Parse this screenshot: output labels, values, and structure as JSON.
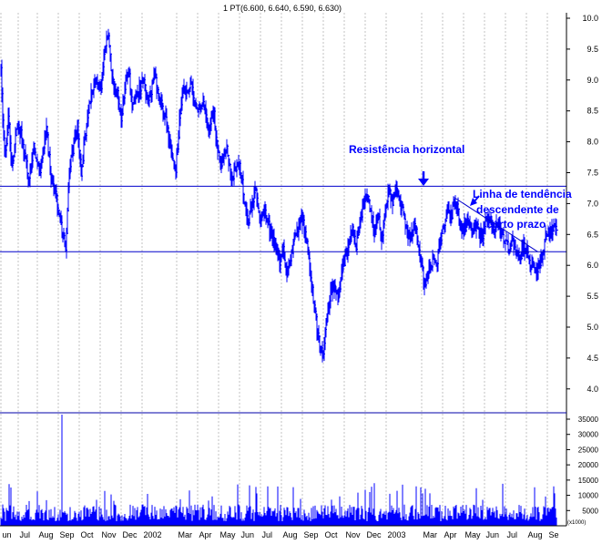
{
  "chart_data": [
    {
      "type": "bar",
      "title": "1 PT(6.600, 6.640, 6.590, 6.630)",
      "xlabel": "",
      "ylabel": "",
      "ylim": [
        4.0,
        10.0
      ],
      "y_ticks": [
        "10.0",
        "9.5",
        "9.0",
        "8.5",
        "8.0",
        "7.5",
        "7.0",
        "6.5",
        "6.0",
        "5.5",
        "5.0",
        "4.5",
        "4.0"
      ],
      "y_tick_values": [
        10.0,
        9.5,
        9.0,
        8.5,
        8.0,
        7.5,
        7.0,
        6.5,
        6.0,
        5.5,
        5.0,
        4.5,
        4.0
      ],
      "axis_side": "right",
      "grid": true,
      "month_labels": [
        "un",
        "Jul",
        "Aug",
        "Sep",
        "Oct",
        "Nov",
        "Dec",
        "2002",
        "Mar",
        "Apr",
        "May",
        "Jun",
        "Jul",
        "Aug",
        "Sep",
        "Oct",
        "Nov",
        "Dec",
        "2003",
        "Mar",
        "Apr",
        "May",
        "Jun",
        "Jul",
        "Aug",
        "Se"
      ],
      "month_index": [
        0,
        19,
        40,
        63,
        86,
        109,
        132,
        155,
        193,
        216,
        239,
        262,
        285,
        308,
        331,
        354,
        377,
        400,
        423,
        462,
        485,
        508,
        531,
        554,
        577,
        600
      ],
      "price_anchors": [
        [
          0,
          9.15
        ],
        [
          4,
          7.7
        ],
        [
          8,
          8.4
        ],
        [
          12,
          7.6
        ],
        [
          18,
          8.3
        ],
        [
          24,
          8.0
        ],
        [
          30,
          7.4
        ],
        [
          36,
          7.9
        ],
        [
          42,
          7.5
        ],
        [
          50,
          8.2
        ],
        [
          55,
          7.4
        ],
        [
          60,
          7.2
        ],
        [
          64,
          6.8
        ],
        [
          68,
          6.5
        ],
        [
          71,
          6.2
        ],
        [
          74,
          7.3
        ],
        [
          78,
          7.8
        ],
        [
          84,
          8.3
        ],
        [
          88,
          7.5
        ],
        [
          92,
          8.0
        ],
        [
          98,
          8.7
        ],
        [
          104,
          9.05
        ],
        [
          110,
          8.8
        ],
        [
          114,
          9.55
        ],
        [
          118,
          9.75
        ],
        [
          122,
          9.0
        ],
        [
          128,
          8.8
        ],
        [
          132,
          8.4
        ],
        [
          136,
          8.9
        ],
        [
          140,
          9.2
        ],
        [
          144,
          8.6
        ],
        [
          150,
          8.75
        ],
        [
          156,
          9.0
        ],
        [
          162,
          8.6
        ],
        [
          168,
          9.1
        ],
        [
          174,
          8.7
        ],
        [
          180,
          8.4
        ],
        [
          186,
          7.9
        ],
        [
          192,
          7.55
        ],
        [
          196,
          8.3
        ],
        [
          200,
          8.9
        ],
        [
          204,
          8.8
        ],
        [
          208,
          9.0
        ],
        [
          212,
          8.7
        ],
        [
          216,
          8.5
        ],
        [
          222,
          8.6
        ],
        [
          228,
          8.2
        ],
        [
          234,
          8.45
        ],
        [
          238,
          7.8
        ],
        [
          242,
          7.55
        ],
        [
          248,
          7.9
        ],
        [
          254,
          7.4
        ],
        [
          258,
          7.55
        ],
        [
          262,
          7.7
        ],
        [
          265,
          7.3
        ],
        [
          268,
          6.95
        ],
        [
          272,
          6.75
        ],
        [
          276,
          7.05
        ],
        [
          280,
          7.25
        ],
        [
          284,
          6.75
        ],
        [
          288,
          6.95
        ],
        [
          292,
          6.75
        ],
        [
          296,
          6.5
        ],
        [
          302,
          6.25
        ],
        [
          306,
          6.05
        ],
        [
          310,
          6.25
        ],
        [
          314,
          5.9
        ],
        [
          318,
          6.1
        ],
        [
          322,
          6.45
        ],
        [
          326,
          6.6
        ],
        [
          330,
          6.8
        ],
        [
          334,
          6.5
        ],
        [
          338,
          6.1
        ],
        [
          342,
          5.6
        ],
        [
          346,
          5.1
        ],
        [
          350,
          4.7
        ],
        [
          354,
          4.55
        ],
        [
          358,
          5.2
        ],
        [
          362,
          5.6
        ],
        [
          366,
          5.7
        ],
        [
          370,
          5.5
        ],
        [
          374,
          5.9
        ],
        [
          378,
          6.15
        ],
        [
          382,
          6.35
        ],
        [
          386,
          6.55
        ],
        [
          390,
          6.35
        ],
        [
          394,
          6.75
        ],
        [
          398,
          6.95
        ],
        [
          402,
          7.1
        ],
        [
          406,
          6.85
        ],
        [
          410,
          6.55
        ],
        [
          414,
          6.85
        ],
        [
          418,
          6.45
        ],
        [
          422,
          6.95
        ],
        [
          426,
          7.2
        ],
        [
          430,
          7.05
        ],
        [
          434,
          7.25
        ],
        [
          438,
          7.05
        ],
        [
          442,
          6.8
        ],
        [
          446,
          6.5
        ],
        [
          450,
          6.45
        ],
        [
          454,
          6.65
        ],
        [
          458,
          6.35
        ],
        [
          462,
          6.05
        ],
        [
          465,
          5.65
        ],
        [
          468,
          5.75
        ],
        [
          471,
          5.95
        ],
        [
          474,
          6.05
        ],
        [
          478,
          6.0
        ],
        [
          482,
          6.35
        ],
        [
          486,
          6.65
        ],
        [
          490,
          6.85
        ],
        [
          494,
          6.75
        ],
        [
          498,
          7.1
        ],
        [
          502,
          6.85
        ],
        [
          506,
          6.55
        ],
        [
          510,
          6.65
        ],
        [
          514,
          6.7
        ],
        [
          518,
          6.5
        ],
        [
          522,
          6.65
        ],
        [
          526,
          6.45
        ],
        [
          530,
          6.55
        ],
        [
          534,
          6.85
        ],
        [
          538,
          6.65
        ],
        [
          542,
          6.55
        ],
        [
          546,
          6.7
        ],
        [
          550,
          6.45
        ],
        [
          554,
          6.35
        ],
        [
          558,
          6.25
        ],
        [
          562,
          6.35
        ],
        [
          566,
          6.2
        ],
        [
          570,
          6.1
        ],
        [
          574,
          6.3
        ],
        [
          578,
          6.15
        ],
        [
          582,
          6.05
        ],
        [
          586,
          5.95
        ],
        [
          590,
          5.9
        ],
        [
          594,
          6.15
        ],
        [
          598,
          6.45
        ],
        [
          602,
          6.5
        ],
        [
          606,
          6.6
        ],
        [
          610,
          6.63
        ]
      ],
      "horizontal_lines": [
        7.28,
        6.22
      ],
      "trendline": {
        "from": [
          498,
          7.1
        ],
        "to": [
          590,
          6.22
        ]
      },
      "annotations": [
        {
          "text": "Resistência horizontal",
          "arrow": true
        },
        {
          "text": "Linha de tendência",
          "arrow": true
        },
        {
          "text": "descendente de",
          "arrow": false
        },
        {
          "text": "curto prazo",
          "arrow": false
        }
      ],
      "colors": {
        "price": "#0000ff",
        "line": "#0000cc",
        "grid": "#b4b4b4",
        "text": "#000000",
        "annotation": "#0000ff"
      }
    },
    {
      "type": "bar",
      "xlabel": "",
      "ylabel": "",
      "ylim": [
        0,
        37500
      ],
      "y_ticks": [
        "35000",
        "30000",
        "25000",
        "20000",
        "15000",
        "10000",
        "5000"
      ],
      "y_tick_values": [
        35000,
        30000,
        25000,
        20000,
        15000,
        10000,
        5000
      ],
      "units_label": "(x1000)",
      "spike": {
        "bar": 67,
        "value": 36500
      },
      "colors": {
        "bars": "#0000ff"
      }
    }
  ]
}
